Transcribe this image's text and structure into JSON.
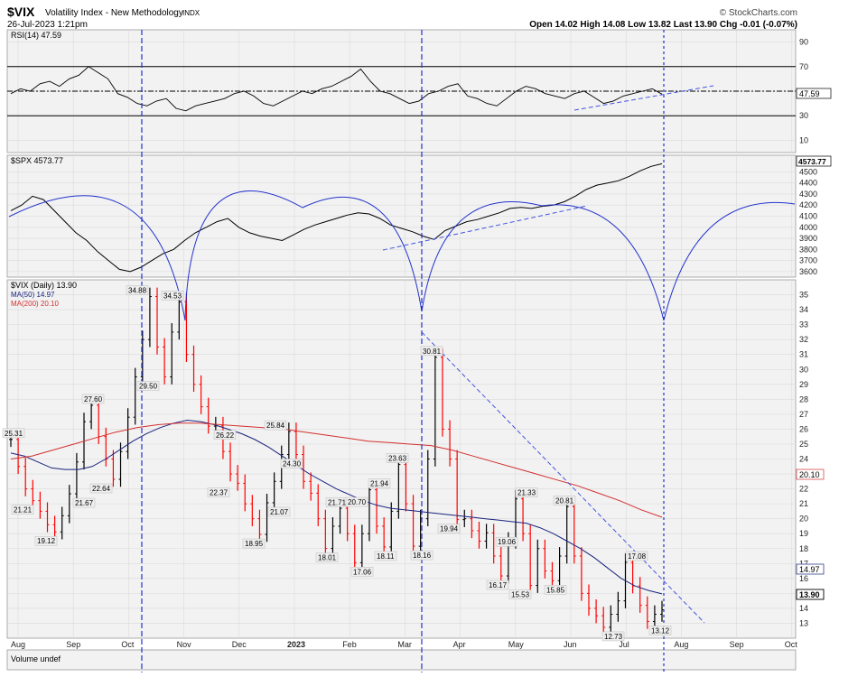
{
  "header": {
    "symbol": "$VIX",
    "name": "Volatility Index - New Methodology",
    "exchange": "INDX",
    "date": "26-Jul-2023 1:21pm",
    "source": "© StockCharts.com",
    "quote": "Open 14.02  High 14.08  Low 13.82  Last 13.90  Chg -0.01 (-0.07%)"
  },
  "colors": {
    "panel_bg": "#f2f2f2",
    "grid": "#d8d8d8",
    "price_line": "#000000",
    "up_bar": "#000000",
    "down_bar": "#ff0000",
    "ma50": "#1a237e",
    "ma200": "#d32f2f",
    "cycle": "#2233cc",
    "trend": "#4455dd"
  },
  "chart_data": [
    {
      "type": "line",
      "panel": "rsi",
      "legend": "RSI(14) 47.59",
      "last_value": "47.59",
      "ylim": [
        0,
        100
      ],
      "yticks": [
        10,
        30,
        50,
        70,
        90
      ],
      "ytick_labels": [
        "10",
        "30",
        "",
        "70",
        "90"
      ],
      "reference_lines": [
        30,
        50,
        70
      ],
      "series": [
        {
          "values": [
            48,
            52,
            50,
            56,
            58,
            54,
            60,
            63,
            70,
            65,
            60,
            48,
            45,
            40,
            38,
            42,
            44,
            36,
            34,
            38,
            40,
            42,
            44,
            48,
            50,
            46,
            40,
            38,
            42,
            46,
            50,
            48,
            52,
            54,
            58,
            62,
            68,
            58,
            50,
            48,
            44,
            40,
            42,
            48,
            50,
            54,
            56,
            46,
            44,
            40,
            38,
            44,
            50,
            54,
            52,
            48,
            46,
            44,
            48,
            50,
            45,
            40,
            42,
            46,
            48,
            50,
            52,
            47.59
          ]
        }
      ]
    },
    {
      "type": "line",
      "panel": "spx",
      "legend": "$SPX 4573.77",
      "last_value": "4573.77",
      "ylim": [
        3550,
        4650
      ],
      "yticks": [
        3600,
        3700,
        3800,
        3900,
        4000,
        4100,
        4200,
        4300,
        4400,
        4500
      ],
      "series": [
        {
          "values": [
            4150,
            4200,
            4280,
            4250,
            4150,
            4050,
            3950,
            3880,
            3780,
            3700,
            3620,
            3600,
            3640,
            3700,
            3760,
            3800,
            3880,
            3950,
            4000,
            4050,
            4080,
            4000,
            3950,
            3920,
            3900,
            3880,
            3930,
            3980,
            4020,
            4050,
            4080,
            4110,
            4130,
            4120,
            4080,
            4020,
            3990,
            3960,
            3920,
            3890,
            3970,
            4010,
            4050,
            4070,
            4100,
            4130,
            4170,
            4180,
            4170,
            4190,
            4200,
            4230,
            4280,
            4340,
            4380,
            4400,
            4420,
            4460,
            4510,
            4550,
            4573.77
          ]
        }
      ]
    },
    {
      "type": "bar",
      "panel": "vix",
      "legend": "$VIX (Daily) 13.90",
      "ma50_label": "MA(50) 14.97",
      "ma200_label": "MA(200) 20.10",
      "last_value": "13.90",
      "ma50_last": "14.97",
      "ma200_last": "20.10",
      "ylim": [
        12,
        36
      ],
      "yticks": [
        13,
        14,
        15,
        16,
        17,
        18,
        19,
        20,
        21,
        22,
        23,
        24,
        25,
        26,
        27,
        28,
        29,
        30,
        31,
        32,
        33,
        34,
        35
      ],
      "xticks": [
        "Aug",
        "Sep",
        "Oct",
        "Nov",
        "Dec",
        "2023",
        "Feb",
        "Mar",
        "Apr",
        "May",
        "Jun",
        "Jul",
        "Aug",
        "Sep",
        "Oct"
      ],
      "closes": [
        25.31,
        23.5,
        22.0,
        21.21,
        20.5,
        19.6,
        19.12,
        20.2,
        21.67,
        23.8,
        26.5,
        27.6,
        25.5,
        24.0,
        22.64,
        24.5,
        26.8,
        29.5,
        32.0,
        34.88,
        31.5,
        29.5,
        32.5,
        34.53,
        31.0,
        29.0,
        27.5,
        26.2,
        26.22,
        24.5,
        23.0,
        22.37,
        21.0,
        20.0,
        18.95,
        21.07,
        22.5,
        24.3,
        25.84,
        24.3,
        22.5,
        21.71,
        20.0,
        18.01,
        19.5,
        20.7,
        19.0,
        17.06,
        19.0,
        21.94,
        19.5,
        18.11,
        20.5,
        23.63,
        21.0,
        18.16,
        20.0,
        24.0,
        30.81,
        26.0,
        24.0,
        19.94,
        20.0,
        19.2,
        18.5,
        19.06,
        17.5,
        16.17,
        18.5,
        21.33,
        19.0,
        15.53,
        18.0,
        16.5,
        15.85,
        17.5,
        20.81,
        17.5,
        15.0,
        14.0,
        13.5,
        12.73,
        13.6,
        14.5,
        17.08,
        15.5,
        14.2,
        13.12,
        13.6,
        13.9
      ],
      "ma50": [
        24.4,
        24.2,
        23.8,
        23.4,
        23.3,
        23.3,
        23.5,
        24.0,
        24.6,
        25.2,
        25.7,
        26.1,
        26.4,
        26.6,
        26.5,
        26.3,
        26.0,
        25.7,
        25.3,
        24.8,
        24.2,
        23.6,
        23.0,
        22.5,
        22.0,
        21.6,
        21.2,
        20.9,
        20.7,
        20.6,
        20.5,
        20.4,
        20.3,
        20.2,
        20.1,
        20.0,
        19.9,
        19.8,
        19.7,
        19.4,
        19.0,
        18.5,
        18.0,
        17.4,
        16.7,
        16.0,
        15.5,
        15.2,
        14.97
      ],
      "ma200": [
        24.0,
        24.2,
        24.6,
        25.0,
        25.4,
        25.8,
        26.1,
        26.3,
        26.4,
        26.4,
        26.3,
        26.2,
        26.1,
        26.0,
        25.8,
        25.6,
        25.4,
        25.2,
        25.1,
        25.0,
        24.9,
        24.6,
        24.2,
        23.8,
        23.4,
        23.0,
        22.6,
        22.2,
        21.7,
        21.2,
        20.6,
        20.1
      ],
      "annotations": [
        "25.31",
        "21.21",
        "19.12",
        "21.67",
        "27.60",
        "22.64",
        "34.88",
        "29.50",
        "34.53",
        "26.22",
        "22.37",
        "18.95",
        "21.07",
        "24.30",
        "25.84",
        "21.71",
        "18.01",
        "20.70",
        "17.06",
        "21.94",
        "18.11",
        "23.63",
        "18.16",
        "30.81",
        "19.94",
        "19.06",
        "16.17",
        "21.33",
        "15.53",
        "15.85",
        "20.81",
        "12.73",
        "17.08",
        "13.12"
      ]
    },
    {
      "type": "bar",
      "panel": "volume",
      "legend": "Volume undef"
    }
  ]
}
